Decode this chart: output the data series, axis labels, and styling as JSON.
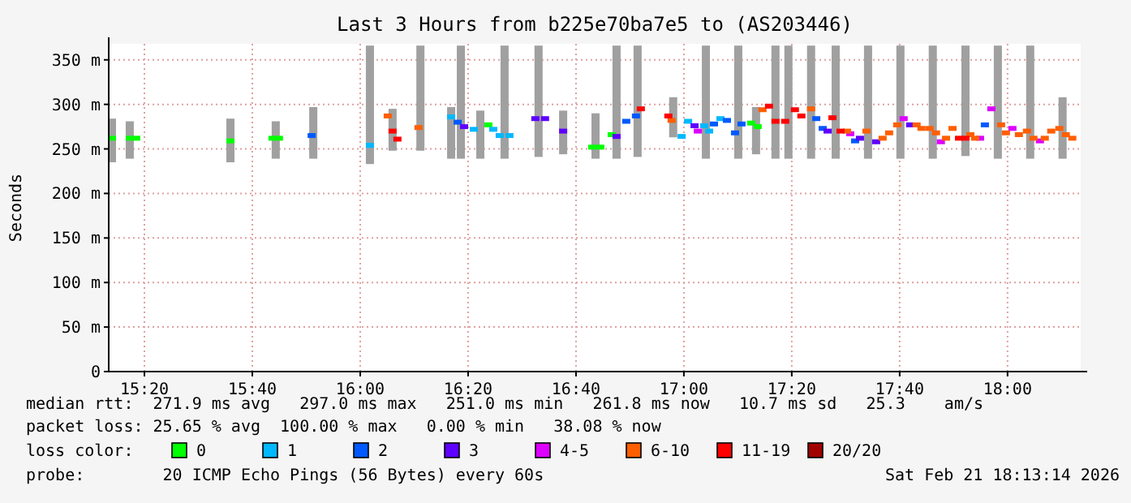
{
  "chart_data": {
    "type": "scatter",
    "title": "Last 3 Hours from b225e70ba7e5 to (AS203446)",
    "ylabel": "Seconds",
    "legend_title": "loss color:",
    "legend": "bottom",
    "grid": true,
    "marker": "square",
    "xlim": [
      15.223,
      18.226
    ],
    "ylim": [
      0,
      368
    ],
    "xticks": [
      {
        "value": 15.3333,
        "label": "15:20"
      },
      {
        "value": 15.6667,
        "label": "15:40"
      },
      {
        "value": 16,
        "label": "16:00"
      },
      {
        "value": 16.3333,
        "label": "16:20"
      },
      {
        "value": 16.6667,
        "label": "16:40"
      },
      {
        "value": 17,
        "label": "17:00"
      },
      {
        "value": 17.3333,
        "label": "17:20"
      },
      {
        "value": 17.6667,
        "label": "17:40"
      },
      {
        "value": 18,
        "label": "18:00"
      }
    ],
    "yticks": [
      0,
      {
        "value": 50,
        "label": "50 m"
      },
      {
        "value": 100,
        "label": "100 m"
      },
      {
        "value": 150,
        "label": "150 m"
      },
      {
        "value": 200,
        "label": "200 m"
      },
      {
        "value": 250,
        "label": "250 m"
      },
      {
        "value": 300,
        "label": "300 m"
      },
      {
        "value": 350,
        "label": "350 m"
      }
    ],
    "series": [
      {
        "type": "bar",
        "color": "#a0a0a0",
        "x": [
          15.233,
          15.288,
          15.599,
          15.739,
          15.855,
          16.03,
          16.1,
          16.186,
          16.281,
          16.311,
          16.371,
          16.446,
          16.551,
          16.627,
          16.727,
          16.792,
          16.857,
          16.967,
          17.068,
          17.168,
          17.223,
          17.283,
          17.323,
          17.393,
          17.469,
          17.569,
          17.669,
          17.769,
          17.87,
          17.97,
          18.07,
          18.17
        ],
        "base": [
          235,
          239,
          235,
          239,
          239,
          233,
          248,
          248,
          239,
          239,
          239,
          239,
          241,
          244,
          239,
          239,
          241,
          263,
          239,
          239,
          244,
          239,
          239,
          239,
          239,
          239,
          239,
          239,
          242,
          239,
          239,
          239
        ],
        "values": [
          49,
          42,
          49,
          42,
          58,
          133,
          47,
          118,
          58,
          127,
          54,
          127,
          125,
          49,
          51,
          127,
          125,
          45,
          127,
          127,
          53,
          127,
          127,
          127,
          127,
          127,
          127,
          127,
          124,
          127,
          127,
          69
        ]
      },
      {
        "name": "0",
        "color": "#00ff00",
        "x": [
          15.233,
          15.288,
          15.308,
          15.599,
          15.729,
          15.749,
          16.396,
          16.717,
          16.742,
          16.777,
          17.208,
          17.228
        ],
        "values": [
          262,
          262,
          262,
          259,
          262,
          262,
          277,
          252,
          252,
          266,
          279,
          275
        ]
      },
      {
        "name": "1",
        "color": "#00b8ff",
        "x": [
          16.03,
          16.281,
          16.351,
          16.411,
          16.431,
          16.461,
          16.993,
          17.013,
          17.063,
          17.078,
          17.113
        ],
        "values": [
          254,
          286,
          272,
          272,
          265,
          265,
          264,
          281,
          276,
          270,
          284
        ]
      },
      {
        "name": "2",
        "color": "#0059ff",
        "x": [
          15.85,
          16.301,
          16.822,
          16.852,
          17.093,
          17.133,
          17.158,
          17.178,
          17.409,
          17.429,
          17.529,
          17.93
        ],
        "values": [
          265,
          280,
          281,
          287,
          278,
          282,
          268,
          278,
          284,
          273,
          259,
          277
        ]
      },
      {
        "name": "3",
        "color": "#5e00ff",
        "x": [
          16.321,
          16.541,
          16.571,
          16.627,
          16.792,
          17.033,
          17.444,
          17.544,
          17.594,
          17.699
        ],
        "values": [
          275,
          284,
          284,
          270,
          264,
          276,
          270,
          262,
          258,
          277
        ]
      },
      {
        "name": "4-5",
        "color": "#dd00ff",
        "x": [
          17.043,
          17.514,
          17.679,
          17.794,
          17.915,
          17.95,
          18.015,
          18.1
        ],
        "values": [
          270,
          267,
          284,
          258,
          262,
          295,
          273,
          259
        ]
      },
      {
        "name": "6-10",
        "color": "#ff5e00",
        "x": [
          16.085,
          16.18,
          16.962,
          17.243,
          17.393,
          17.504,
          17.564,
          17.614,
          17.634,
          17.659,
          17.719,
          17.734,
          17.759,
          17.779,
          17.81,
          17.83,
          17.885,
          17.9,
          17.98,
          17.995,
          18.035,
          18.06,
          18.08,
          18.115,
          18.135,
          18.16,
          18.18,
          18.2
        ],
        "values": [
          287,
          274,
          282,
          294,
          295,
          270,
          270,
          262,
          268,
          277,
          277,
          273,
          273,
          268,
          262,
          273,
          266,
          262,
          277,
          268,
          266,
          270,
          262,
          262,
          270,
          273,
          266,
          262
        ]
      },
      {
        "name": "11-19",
        "color": "#ff0000",
        "x": [
          16.1,
          16.115,
          16.867,
          16.952,
          17.263,
          17.283,
          17.313,
          17.343,
          17.363,
          17.459,
          17.484,
          17.85,
          17.87
        ],
        "values": [
          270,
          261,
          295,
          287,
          298,
          281,
          281,
          294,
          287,
          285,
          270,
          262,
          262
        ]
      },
      {
        "name": "20/20",
        "color": "#a10000"
      }
    ],
    "annotations": [
      "median rtt:  271.9 ms avg   297.0 ms max   251.0 ms min   261.8 ms now   10.7 ms sd   25.3    am/s",
      "packet loss: 25.65 % avg  100.00 % max   0.00 % min   38.08 % now",
      "probe:        20 ICMP Echo Pings (56 Bytes) every 60s",
      "Sat Feb 21 18:13:14 2026"
    ]
  }
}
